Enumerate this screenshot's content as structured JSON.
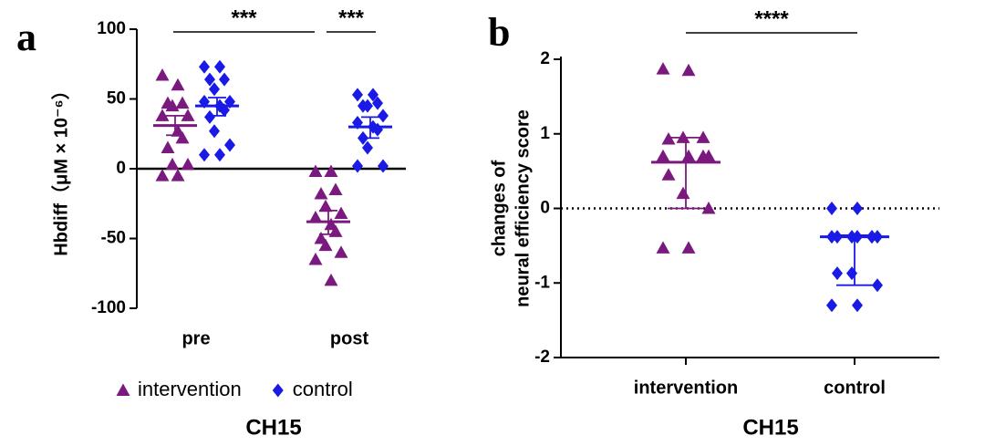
{
  "chart_data": [
    {
      "type": "dot",
      "panel": "a",
      "ylabel": "Hbdiff（μM × 10⁻⁶）",
      "xlabel": "CH15",
      "categories": [
        "pre",
        "post"
      ],
      "ylim": [
        -100,
        100
      ],
      "yticks": [
        -100,
        -50,
        0,
        50,
        100
      ],
      "series": [
        {
          "name": "intervention",
          "color": "#7b1a7e",
          "marker": "triangle",
          "values": [
            [
              67,
              60,
              47,
              47,
              45,
              38,
              38,
              27,
              22,
              15,
              3,
              3,
              -5,
              -5
            ],
            [
              -2,
              -2,
              -15,
              -18,
              -27,
              -32,
              -35,
              -40,
              -45,
              -50,
              -55,
              -60,
              -65,
              -80
            ]
          ],
          "center": [
            31,
            -38
          ],
          "error_low": [
            24,
            -47
          ],
          "error_high": [
            38,
            -30
          ]
        },
        {
          "name": "control",
          "color": "#1a1ae6",
          "marker": "diamond",
          "values": [
            [
              73,
              73,
              64,
              64,
              57,
              48,
              48,
              45,
              42,
              37,
              27,
              17,
              10,
              10
            ],
            [
              53,
              53,
              47,
              45,
              45,
              38,
              33,
              30,
              28,
              22,
              15,
              2,
              2
            ]
          ],
          "center": [
            45,
            30
          ],
          "error_low": [
            38,
            22
          ],
          "error_high": [
            51,
            37
          ]
        }
      ],
      "significance": [
        "***",
        "***"
      ]
    },
    {
      "type": "dot",
      "panel": "b",
      "ylabel": [
        "changes of",
        "neural efficiency score"
      ],
      "xlabel": "CH15",
      "categories": [
        "intervention",
        "control"
      ],
      "ylim": [
        -2,
        2
      ],
      "yticks": [
        -2,
        -1,
        0,
        1,
        2
      ],
      "series": [
        {
          "color": "#7b1a7e",
          "marker": "triangle",
          "values": [
            [
              1.87,
              1.85,
              0.95,
              0.93,
              0.95,
              0.7,
              0.7,
              0.7,
              0.7,
              0.45,
              0.2,
              0,
              -0.53,
              -0.53
            ],
            null
          ],
          "center": [
            0.62,
            null
          ],
          "error_low": [
            0,
            null
          ],
          "error_high": [
            0.95,
            null
          ]
        },
        {
          "color": "#1a1ae6",
          "marker": "diamond",
          "values": [
            null,
            [
              0,
              0,
              -0.38,
              -0.38,
              -0.38,
              -0.38,
              -0.38,
              -0.38,
              -0.38,
              -0.87,
              -0.87,
              -1.03,
              -1.3,
              -1.3
            ]
          ],
          "center": [
            null,
            -0.38
          ],
          "error_low": [
            null,
            -1.03
          ],
          "error_high": [
            null,
            -0.36
          ]
        }
      ],
      "significance": [
        "****"
      ]
    }
  ]
}
